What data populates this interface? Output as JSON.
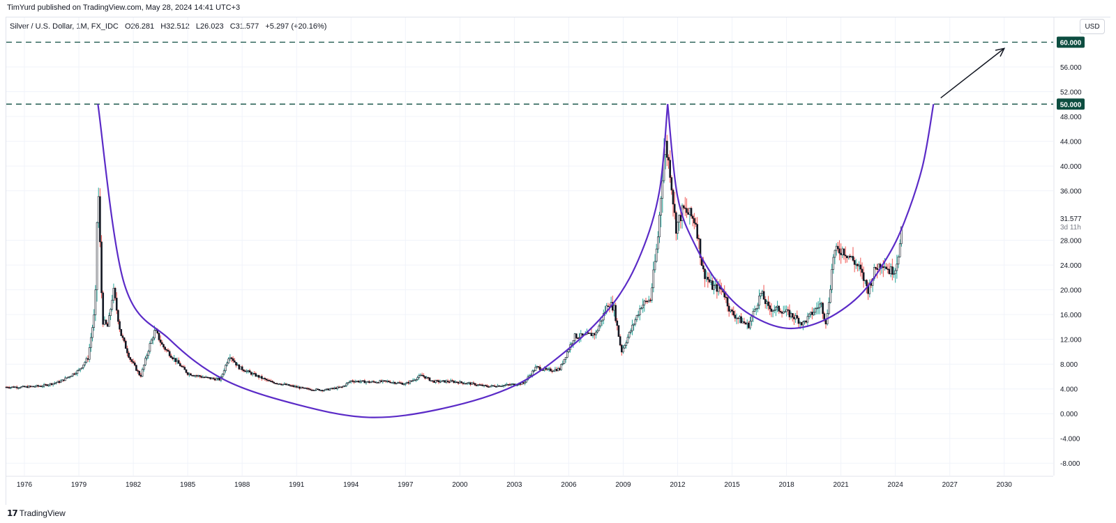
{
  "header": {
    "published": "TimYurd published on TradingView.com, May 28, 2024 14:41 UTC+3"
  },
  "legend": {
    "symbol": "Silver / U.S. Dollar, 1M, FX_IDC",
    "open": "O26.281",
    "high": "H32.512",
    "low": "L26.023",
    "close": "C31.577",
    "change": "+5.297 (+20.16%)"
  },
  "currency_button": "USD",
  "footer": {
    "logo_text": "TradingView",
    "logo_icon": "tradingview-logo-icon"
  },
  "colors": {
    "up": "#26a69a",
    "down": "#ef5350",
    "candle": "#131722",
    "curve": "#5b2bc7",
    "level": "#0d4d40",
    "grid": "#f0f3fa"
  },
  "chart_data": {
    "type": "candlestick",
    "title": "Silver / U.S. Dollar, 1M, FX_IDC",
    "xlabel": "",
    "ylabel": "",
    "x_ticks": [
      "1976",
      "1979",
      "1982",
      "1985",
      "1988",
      "1991",
      "1994",
      "1997",
      "2000",
      "2003",
      "2006",
      "2009",
      "2012",
      "2015",
      "2018",
      "2021",
      "2024",
      "2027",
      "2030"
    ],
    "x_tick_years": [
      1976,
      1979,
      1982,
      1985,
      1988,
      1991,
      1994,
      1997,
      2000,
      2003,
      2006,
      2009,
      2012,
      2015,
      2018,
      2021,
      2024,
      2027,
      2030
    ],
    "xlim": [
      1975.0,
      2032.7
    ],
    "y_ticks": [
      -8,
      -4,
      0,
      4,
      8,
      12,
      16,
      20,
      24,
      28,
      36,
      40,
      44,
      48,
      52,
      56
    ],
    "y_tick_labels": [
      "-8.000",
      "-4.000",
      "0.000",
      "4.000",
      "8.000",
      "12.000",
      "16.000",
      "20.000",
      "24.000",
      "28.000",
      "36.000",
      "40.000",
      "44.000",
      "48.000",
      "52.000",
      "56.000"
    ],
    "ylim": [
      -10,
      64
    ],
    "grid": true,
    "price_series": [
      [
        1975.0,
        4.3
      ],
      [
        1976.0,
        4.3
      ],
      [
        1977.0,
        4.5
      ],
      [
        1978.0,
        5.2
      ],
      [
        1979.0,
        7.0
      ],
      [
        1979.5,
        9.0
      ],
      [
        1979.9,
        17.0
      ],
      [
        1980.05,
        38.0
      ],
      [
        1980.3,
        15.0
      ],
      [
        1980.6,
        14.0
      ],
      [
        1980.9,
        20.0
      ],
      [
        1981.3,
        13.0
      ],
      [
        1981.8,
        9.0
      ],
      [
        1982.4,
        6.0
      ],
      [
        1982.9,
        11.0
      ],
      [
        1983.2,
        13.5
      ],
      [
        1983.6,
        11.0
      ],
      [
        1984.2,
        9.0
      ],
      [
        1985.0,
        6.5
      ],
      [
        1986.0,
        5.8
      ],
      [
        1986.8,
        5.5
      ],
      [
        1987.3,
        9.5
      ],
      [
        1987.8,
        7.5
      ],
      [
        1988.5,
        6.5
      ],
      [
        1989.5,
        5.2
      ],
      [
        1990.5,
        4.6
      ],
      [
        1991.5,
        4.0
      ],
      [
        1992.5,
        3.8
      ],
      [
        1993.5,
        4.3
      ],
      [
        1994.0,
        5.3
      ],
      [
        1995.0,
        5.1
      ],
      [
        1996.0,
        5.2
      ],
      [
        1997.0,
        4.8
      ],
      [
        1997.9,
        6.2
      ],
      [
        1998.5,
        5.2
      ],
      [
        1999.5,
        5.2
      ],
      [
        2000.5,
        4.9
      ],
      [
        2001.5,
        4.4
      ],
      [
        2002.5,
        4.6
      ],
      [
        2003.5,
        4.9
      ],
      [
        2004.2,
        7.5
      ],
      [
        2004.8,
        7.0
      ],
      [
        2005.5,
        7.2
      ],
      [
        2006.3,
        12.5
      ],
      [
        2006.8,
        12.5
      ],
      [
        2007.5,
        13.0
      ],
      [
        2008.2,
        18.0
      ],
      [
        2008.5,
        17.0
      ],
      [
        2008.9,
        10.0
      ],
      [
        2009.5,
        14.0
      ],
      [
        2010.0,
        17.5
      ],
      [
        2010.5,
        18.5
      ],
      [
        2010.9,
        28.0
      ],
      [
        2011.3,
        44.0
      ],
      [
        2011.6,
        39.0
      ],
      [
        2011.9,
        30.0
      ],
      [
        2012.3,
        33.0
      ],
      [
        2012.7,
        32.0
      ],
      [
        2013.0,
        31.0
      ],
      [
        2013.4,
        23.0
      ],
      [
        2013.9,
        20.5
      ],
      [
        2014.5,
        20.0
      ],
      [
        2014.9,
        16.5
      ],
      [
        2015.5,
        15.0
      ],
      [
        2015.9,
        14.2
      ],
      [
        2016.6,
        19.5
      ],
      [
        2017.0,
        17.0
      ],
      [
        2017.7,
        16.8
      ],
      [
        2018.5,
        15.5
      ],
      [
        2018.9,
        14.5
      ],
      [
        2019.5,
        16.5
      ],
      [
        2019.9,
        17.8
      ],
      [
        2020.2,
        14.5
      ],
      [
        2020.6,
        26.0
      ],
      [
        2021.1,
        26.5
      ],
      [
        2021.6,
        25.0
      ],
      [
        2022.0,
        23.5
      ],
      [
        2022.5,
        20.0
      ],
      [
        2022.9,
        23.5
      ],
      [
        2023.3,
        24.5
      ],
      [
        2023.7,
        23.0
      ],
      [
        2024.0,
        23.5
      ],
      [
        2024.3,
        28.0
      ],
      [
        2024.4,
        31.6
      ]
    ],
    "last_price": "31.577",
    "countdown": "3d 11h",
    "horizontal_levels": [
      {
        "label": "60.000",
        "value": 60
      },
      {
        "label": "50.000",
        "value": 50
      }
    ],
    "annotations": {
      "cup_curves": [
        {
          "points": [
            [
              1980.05,
              50
            ],
            [
              1981.5,
              21
            ],
            [
              1984.0,
              12
            ],
            [
              1987.0,
              5.5
            ],
            [
              1991.0,
              1.5
            ],
            [
              1995.0,
              -0.6
            ],
            [
              1999.0,
              0.8
            ],
            [
              2003.0,
              4.5
            ],
            [
              2006.0,
              10.5
            ],
            [
              2008.5,
              18
            ],
            [
              2010.0,
              26
            ],
            [
              2011.0,
              36
            ],
            [
              2011.45,
              50
            ]
          ]
        },
        {
          "points": [
            [
              2011.45,
              50
            ],
            [
              2012.0,
              35
            ],
            [
              2013.0,
              27
            ],
            [
              2014.5,
              20
            ],
            [
              2016.0,
              16
            ],
            [
              2018.0,
              13.8
            ],
            [
              2020.0,
              15
            ],
            [
              2022.0,
              19
            ],
            [
              2023.5,
              25
            ],
            [
              2024.5,
              31
            ],
            [
              2025.5,
              40
            ],
            [
              2026.1,
              50
            ]
          ]
        }
      ],
      "arrow": {
        "from": [
          2026.5,
          51
        ],
        "to": [
          2030.0,
          59
        ]
      }
    }
  }
}
